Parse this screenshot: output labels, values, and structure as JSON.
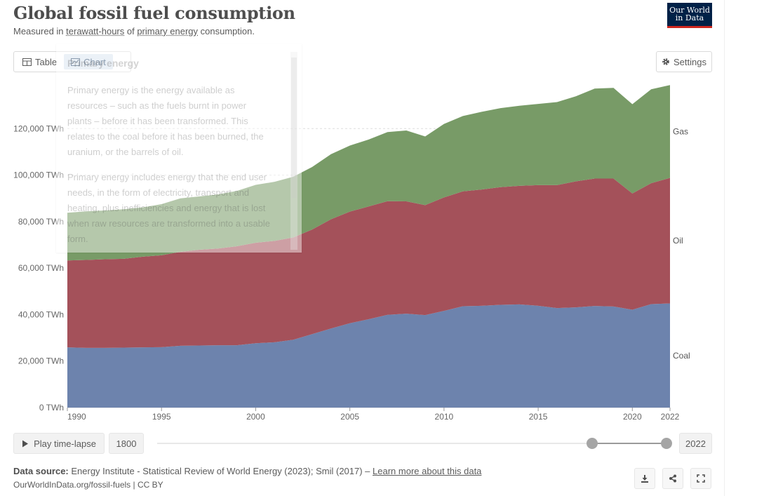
{
  "header": {
    "title": "Global fossil fuel consumption",
    "subtitle_pre": "Measured in ",
    "subtitle_link1": "terawatt-hours",
    "subtitle_mid": " of ",
    "subtitle_link2": "primary energy",
    "subtitle_post": " consumption.",
    "logo_line1": "Our World",
    "logo_line2": "in Data"
  },
  "tabs": {
    "table_label": "Table",
    "chart_label": "Chart"
  },
  "settings_label": "Settings",
  "tooltip": {
    "title": "Primary energy",
    "p1": "Primary energy is the energy available as resources – such as the fuels burnt in power plants – before it has been transformed. This relates to the coal before it has been burned, the uranium, or the barrels of oil.",
    "p2": "Primary energy includes energy that the end user needs, in the form of electricity, transport and heating, plus inefficiencies and energy that is lost when raw resources are transformed into a usable form."
  },
  "chart_data": {
    "type": "area",
    "stacked": true,
    "title": "Global fossil fuel consumption",
    "ylabel": "TWh",
    "ylim": [
      0,
      140000
    ],
    "xlim": [
      1990,
      2022
    ],
    "yticks": [
      0,
      20000,
      40000,
      60000,
      80000,
      100000,
      120000
    ],
    "ytick_labels": [
      "0 TWh",
      "20,000 TWh",
      "40,000 TWh",
      "60,000 TWh",
      "80,000 TWh",
      "100,000 TWh",
      "120,000 TWh"
    ],
    "xticks": [
      1990,
      1995,
      2000,
      2005,
      2010,
      2015,
      2020,
      2022
    ],
    "xtick_labels": [
      "1990",
      "1995",
      "2000",
      "2005",
      "2010",
      "2015",
      "2020",
      "2022"
    ],
    "x": [
      1990,
      1991,
      1992,
      1993,
      1994,
      1995,
      1996,
      1997,
      1998,
      1999,
      2000,
      2001,
      2002,
      2003,
      2004,
      2005,
      2006,
      2007,
      2008,
      2009,
      2010,
      2011,
      2012,
      2013,
      2014,
      2015,
      2016,
      2017,
      2018,
      2019,
      2020,
      2021,
      2022
    ],
    "series": [
      {
        "name": "Coal",
        "color": "#6d83ad",
        "values": [
          25900,
          25700,
          25700,
          25800,
          25900,
          26000,
          26600,
          26700,
          26800,
          26800,
          27700,
          28100,
          29200,
          31600,
          34000,
          36300,
          38000,
          39900,
          40400,
          39800,
          41600,
          43600,
          43800,
          44200,
          44400,
          43800,
          42800,
          43100,
          43700,
          43500,
          42100,
          44500,
          44800
        ]
      },
      {
        "name": "Oil",
        "color": "#a4515a",
        "values": [
          37400,
          37800,
          38100,
          38200,
          39000,
          39500,
          40400,
          41200,
          41600,
          42600,
          43200,
          43600,
          44000,
          45000,
          47000,
          48000,
          48500,
          48900,
          48300,
          47300,
          48800,
          49400,
          50000,
          50600,
          51000,
          51900,
          52900,
          54200,
          54800,
          55000,
          50000,
          52000,
          54000
        ]
      },
      {
        "name": "Gas",
        "color": "#789b67",
        "values": [
          20500,
          20900,
          21000,
          21300,
          21200,
          22000,
          23000,
          22900,
          23300,
          23800,
          24900,
          25400,
          26100,
          26900,
          28000,
          28400,
          28800,
          29700,
          30500,
          29500,
          31600,
          32400,
          33400,
          34000,
          34400,
          34900,
          35700,
          36600,
          38700,
          39000,
          38400,
          40400,
          39900
        ]
      }
    ]
  },
  "timeline": {
    "play_label": "Play time-lapse",
    "start_year": "1800",
    "end_year": "2022",
    "range_start_fraction": 0.854,
    "range_end_fraction": 1.0
  },
  "footer": {
    "source_label": "Data source:",
    "source_text": " Energy Institute - Statistical Review of World Energy (2023); Smil (2017) – ",
    "source_link": "Learn more about this data",
    "credit": "OurWorldInData.org/fossil-fuels | CC BY"
  }
}
